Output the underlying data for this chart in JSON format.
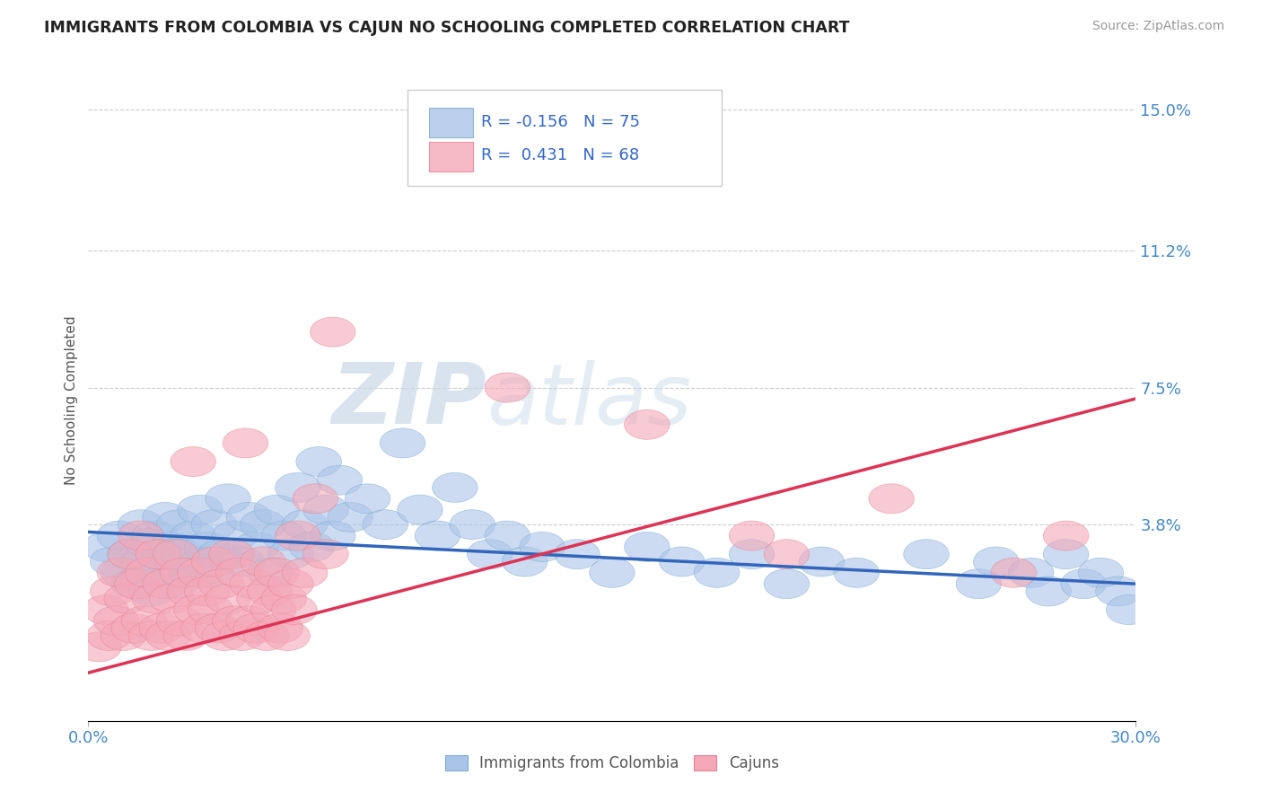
{
  "title": "IMMIGRANTS FROM COLOMBIA VS CAJUN NO SCHOOLING COMPLETED CORRELATION CHART",
  "source": "Source: ZipAtlas.com",
  "ylabel": "No Schooling Completed",
  "xlim": [
    0.0,
    0.3
  ],
  "ylim": [
    -0.015,
    0.158
  ],
  "yticks": [
    0.038,
    0.075,
    0.112,
    0.15
  ],
  "ytick_labels": [
    "3.8%",
    "7.5%",
    "11.2%",
    "15.0%"
  ],
  "xtick_labels": [
    "0.0%",
    "30.0%"
  ],
  "xticks": [
    0.0,
    0.3
  ],
  "blue_R": -0.156,
  "blue_N": 75,
  "pink_R": 0.431,
  "pink_N": 68,
  "blue_color": "#aac4e8",
  "pink_color": "#f4a8b8",
  "blue_edge_color": "#7aaad0",
  "pink_edge_color": "#e88090",
  "blue_line_color": "#3366bb",
  "pink_line_color": "#dd3355",
  "watermark_zip": "ZIP",
  "watermark_atlas": "atlas",
  "legend_label_blue": "Immigrants from Colombia",
  "legend_label_pink": "Cajuns",
  "blue_line_start": 0.036,
  "blue_line_end": 0.022,
  "pink_line_start": -0.002,
  "pink_line_end": 0.072,
  "blue_scatter": [
    [
      0.005,
      0.032
    ],
    [
      0.007,
      0.028
    ],
    [
      0.009,
      0.035
    ],
    [
      0.01,
      0.025
    ],
    [
      0.012,
      0.03
    ],
    [
      0.013,
      0.022
    ],
    [
      0.015,
      0.038
    ],
    [
      0.016,
      0.028
    ],
    [
      0.017,
      0.033
    ],
    [
      0.018,
      0.02
    ],
    [
      0.019,
      0.035
    ],
    [
      0.02,
      0.03
    ],
    [
      0.021,
      0.025
    ],
    [
      0.022,
      0.04
    ],
    [
      0.023,
      0.028
    ],
    [
      0.024,
      0.032
    ],
    [
      0.025,
      0.022
    ],
    [
      0.026,
      0.038
    ],
    [
      0.027,
      0.03
    ],
    [
      0.028,
      0.025
    ],
    [
      0.03,
      0.035
    ],
    [
      0.032,
      0.042
    ],
    [
      0.033,
      0.028
    ],
    [
      0.034,
      0.032
    ],
    [
      0.035,
      0.025
    ],
    [
      0.036,
      0.038
    ],
    [
      0.038,
      0.03
    ],
    [
      0.04,
      0.045
    ],
    [
      0.042,
      0.035
    ],
    [
      0.044,
      0.028
    ],
    [
      0.046,
      0.04
    ],
    [
      0.048,
      0.032
    ],
    [
      0.05,
      0.038
    ],
    [
      0.052,
      0.025
    ],
    [
      0.054,
      0.042
    ],
    [
      0.056,
      0.035
    ],
    [
      0.058,
      0.03
    ],
    [
      0.06,
      0.048
    ],
    [
      0.062,
      0.038
    ],
    [
      0.064,
      0.032
    ],
    [
      0.066,
      0.055
    ],
    [
      0.068,
      0.042
    ],
    [
      0.07,
      0.035
    ],
    [
      0.072,
      0.05
    ],
    [
      0.075,
      0.04
    ],
    [
      0.08,
      0.045
    ],
    [
      0.085,
      0.038
    ],
    [
      0.09,
      0.06
    ],
    [
      0.095,
      0.042
    ],
    [
      0.1,
      0.035
    ],
    [
      0.105,
      0.048
    ],
    [
      0.11,
      0.038
    ],
    [
      0.115,
      0.03
    ],
    [
      0.12,
      0.035
    ],
    [
      0.125,
      0.028
    ],
    [
      0.13,
      0.032
    ],
    [
      0.14,
      0.03
    ],
    [
      0.15,
      0.025
    ],
    [
      0.16,
      0.032
    ],
    [
      0.17,
      0.028
    ],
    [
      0.18,
      0.025
    ],
    [
      0.19,
      0.03
    ],
    [
      0.2,
      0.022
    ],
    [
      0.21,
      0.028
    ],
    [
      0.22,
      0.025
    ],
    [
      0.24,
      0.03
    ],
    [
      0.255,
      0.022
    ],
    [
      0.26,
      0.028
    ],
    [
      0.27,
      0.025
    ],
    [
      0.275,
      0.02
    ],
    [
      0.28,
      0.03
    ],
    [
      0.285,
      0.022
    ],
    [
      0.29,
      0.025
    ],
    [
      0.295,
      0.02
    ],
    [
      0.298,
      0.015
    ]
  ],
  "pink_scatter": [
    [
      0.003,
      0.005
    ],
    [
      0.005,
      0.015
    ],
    [
      0.006,
      0.008
    ],
    [
      0.007,
      0.02
    ],
    [
      0.008,
      0.012
    ],
    [
      0.009,
      0.025
    ],
    [
      0.01,
      0.008
    ],
    [
      0.011,
      0.018
    ],
    [
      0.012,
      0.03
    ],
    [
      0.013,
      0.01
    ],
    [
      0.014,
      0.022
    ],
    [
      0.015,
      0.035
    ],
    [
      0.016,
      0.012
    ],
    [
      0.017,
      0.025
    ],
    [
      0.018,
      0.008
    ],
    [
      0.019,
      0.018
    ],
    [
      0.02,
      0.03
    ],
    [
      0.021,
      0.01
    ],
    [
      0.022,
      0.022
    ],
    [
      0.023,
      0.008
    ],
    [
      0.024,
      0.018
    ],
    [
      0.025,
      0.03
    ],
    [
      0.026,
      0.012
    ],
    [
      0.027,
      0.025
    ],
    [
      0.028,
      0.008
    ],
    [
      0.029,
      0.02
    ],
    [
      0.03,
      0.055
    ],
    [
      0.031,
      0.015
    ],
    [
      0.032,
      0.025
    ],
    [
      0.033,
      0.01
    ],
    [
      0.034,
      0.02
    ],
    [
      0.035,
      0.015
    ],
    [
      0.036,
      0.028
    ],
    [
      0.037,
      0.01
    ],
    [
      0.038,
      0.022
    ],
    [
      0.039,
      0.008
    ],
    [
      0.04,
      0.018
    ],
    [
      0.041,
      0.03
    ],
    [
      0.042,
      0.012
    ],
    [
      0.043,
      0.025
    ],
    [
      0.044,
      0.008
    ],
    [
      0.045,
      0.06
    ],
    [
      0.046,
      0.012
    ],
    [
      0.047,
      0.022
    ],
    [
      0.048,
      0.01
    ],
    [
      0.049,
      0.018
    ],
    [
      0.05,
      0.028
    ],
    [
      0.051,
      0.008
    ],
    [
      0.052,
      0.02
    ],
    [
      0.053,
      0.015
    ],
    [
      0.054,
      0.025
    ],
    [
      0.055,
      0.01
    ],
    [
      0.056,
      0.018
    ],
    [
      0.057,
      0.008
    ],
    [
      0.058,
      0.022
    ],
    [
      0.059,
      0.015
    ],
    [
      0.06,
      0.035
    ],
    [
      0.062,
      0.025
    ],
    [
      0.065,
      0.045
    ],
    [
      0.068,
      0.03
    ],
    [
      0.07,
      0.09
    ],
    [
      0.12,
      0.075
    ],
    [
      0.16,
      0.065
    ],
    [
      0.19,
      0.035
    ],
    [
      0.2,
      0.03
    ],
    [
      0.23,
      0.045
    ],
    [
      0.265,
      0.025
    ],
    [
      0.28,
      0.035
    ]
  ]
}
